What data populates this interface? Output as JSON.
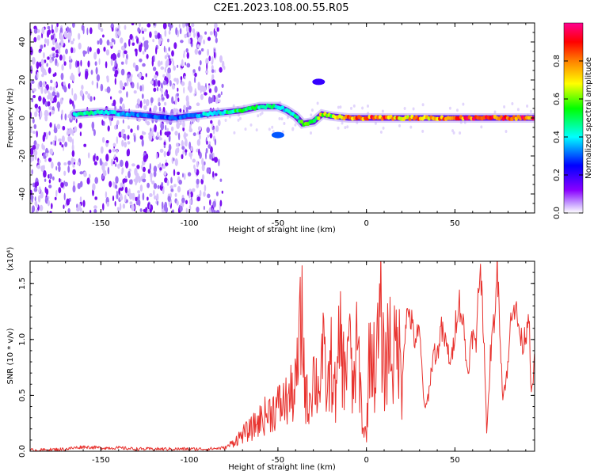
{
  "chart_data": [
    {
      "type": "heatmap",
      "title": "C2E1.2023.108.00.55.R05",
      "xlabel": "Height of straight line (km)",
      "ylabel": "Frequency (Hz)",
      "xlim": [
        -190,
        95
      ],
      "ylim": [
        -50,
        50
      ],
      "xticks": [
        -150,
        -100,
        -50,
        0,
        50
      ],
      "yticks": [
        -40,
        -20,
        0,
        20,
        40
      ],
      "colorbar": {
        "label": "Normalized spectral amplitude",
        "range": [
          0,
          1
        ],
        "ticks": [
          "0.0",
          "0.2",
          "0.4",
          "0.6",
          "0.8"
        ],
        "colors": [
          "#ffffff",
          "#8a00ff",
          "#0000ff",
          "#00ffff",
          "#00ff00",
          "#ffff00",
          "#ff8000",
          "#ff0000",
          "#ff00a0"
        ]
      },
      "ridge": {
        "x": [
          -165,
          -150,
          -135,
          -120,
          -110,
          -100,
          -90,
          -80,
          -70,
          -60,
          -50,
          -45,
          -40,
          -36,
          -30,
          -25,
          -20,
          -10,
          0,
          10,
          20,
          40,
          60,
          80,
          95
        ],
        "y": [
          2,
          3,
          2,
          1,
          0,
          1,
          2,
          3,
          4,
          6,
          6,
          4,
          1,
          -3,
          -2,
          2,
          1,
          0,
          0,
          0,
          0,
          0,
          0,
          0,
          0
        ],
        "amp": [
          0.45,
          0.45,
          0.35,
          0.3,
          0.3,
          0.35,
          0.4,
          0.45,
          0.55,
          0.5,
          0.45,
          0.4,
          0.5,
          0.6,
          0.55,
          0.7,
          0.6,
          0.8,
          0.85,
          0.85,
          0.8,
          0.8,
          0.9,
          0.9,
          0.9
        ]
      },
      "secondary_features": [
        {
          "x": -50,
          "y": -9,
          "amp": 0.3
        },
        {
          "x": -27,
          "y": 19,
          "amp": 0.2
        }
      ]
    },
    {
      "type": "line",
      "xlabel": "Height of straight line (km)",
      "ylabel": "SNR (10 * v/v)",
      "y_multiplier": "(x10⁴)",
      "xlim": [
        -190,
        95
      ],
      "ylim": [
        0,
        1.7
      ],
      "xticks": [
        -150,
        -100,
        -50,
        0,
        50
      ],
      "yticks": [
        "0.0",
        "0.5",
        "1.0",
        "1.5"
      ],
      "series": [
        {
          "color": "#e8322e",
          "x": [
            -190,
            -180,
            -170,
            -160,
            -150,
            -140,
            -130,
            -120,
            -110,
            -100,
            -90,
            -80,
            -75,
            -70,
            -65,
            -60,
            -55,
            -50,
            -45,
            -40,
            -37,
            -36,
            -35,
            -33,
            -30,
            -27,
            -25,
            -22,
            -20,
            -17,
            -15,
            -12,
            -10,
            -8,
            -5,
            -2,
            0,
            2,
            5,
            8,
            10,
            13,
            15,
            18,
            20,
            22,
            24,
            25,
            27,
            30,
            33,
            35,
            38,
            40,
            42,
            45,
            48,
            50,
            52,
            53,
            55,
            57,
            60,
            62,
            63,
            65,
            67,
            68,
            70,
            72,
            74,
            75,
            77,
            80,
            82,
            83,
            85,
            88,
            90,
            92,
            93,
            95
          ],
          "y": [
            0.01,
            0.012,
            0.02,
            0.04,
            0.03,
            0.03,
            0.02,
            0.02,
            0.02,
            0.02,
            0.02,
            0.03,
            0.08,
            0.15,
            0.2,
            0.28,
            0.35,
            0.4,
            0.45,
            0.55,
            1.1,
            1.2,
            0.6,
            0.4,
            0.7,
            0.55,
            0.9,
            0.5,
            0.8,
            0.45,
            1.05,
            0.6,
            1.2,
            0.5,
            0.95,
            0.2,
            0.15,
            1.0,
            0.7,
            1.2,
            0.7,
            1.05,
            0.8,
            1.0,
            0.6,
            1.15,
            1.25,
            1.2,
            1.0,
            1.05,
            0.35,
            0.5,
            0.9,
            0.85,
            1.1,
            0.95,
            0.78,
            1.1,
            1.35,
            1.3,
            1.1,
            0.7,
            1.05,
            0.9,
            1.5,
            1.55,
            0.75,
            0.12,
            0.85,
            1.15,
            1.65,
            1.3,
            0.48,
            0.75,
            1.3,
            1.35,
            1.2,
            0.95,
            1.05,
            1.3,
            0.45,
            0.8
          ]
        }
      ]
    }
  ]
}
